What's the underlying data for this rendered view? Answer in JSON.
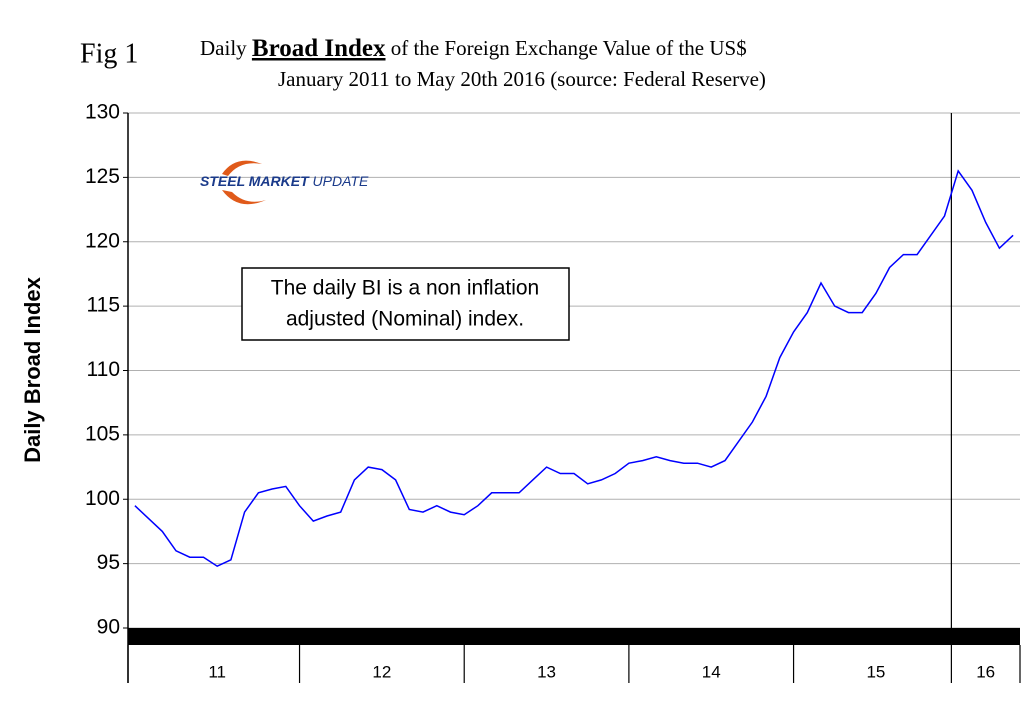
{
  "chart_data": {
    "type": "line",
    "figure_label": "Fig 1",
    "title": [
      "Daily ",
      "Broad Index",
      " of the Foreign Exchange Value of the US$"
    ],
    "subtitle": "January 2011 to May 20th 2016 (source: Federal Reserve)",
    "y_label": "Daily Broad Index",
    "logo": [
      "STEEL ",
      "MARKET",
      " UPDATE"
    ],
    "annotation": [
      "The daily BI is a non inflation",
      "adjusted (Nominal) index."
    ],
    "categories": [
      null,
      null,
      null,
      null,
      null,
      null,
      "11",
      null,
      null,
      null,
      null,
      null,
      null,
      null,
      null,
      null,
      null,
      null,
      "12",
      null,
      null,
      null,
      null,
      null,
      null,
      null,
      null,
      null,
      null,
      null,
      "13",
      null,
      null,
      null,
      null,
      null,
      null,
      null,
      null,
      null,
      null,
      null,
      "14",
      null,
      null,
      null,
      null,
      null,
      null,
      null,
      null,
      null,
      null,
      null,
      "15",
      null,
      null,
      null,
      null,
      null,
      null,
      null,
      "16",
      null,
      null
    ],
    "series": [
      {
        "color": "#0000ff",
        "values": [
          99.5,
          98.5,
          97.5,
          96,
          95.5,
          95.5,
          94.8,
          95.3,
          99,
          100.5,
          100.8,
          101,
          99.5,
          98.3,
          98.7,
          99,
          101.5,
          102.5,
          102.3,
          101.5,
          99.2,
          99,
          99.5,
          99,
          98.8,
          99.5,
          100.5,
          100.5,
          100.5,
          101.5,
          102.5,
          102,
          102,
          101.2,
          101.5,
          102,
          102.8,
          103,
          103.3,
          103,
          102.8,
          102.8,
          102.5,
          103,
          104.5,
          106,
          108,
          111,
          113,
          114.5,
          116.8,
          115,
          114.5,
          114.5,
          116,
          118,
          119,
          119,
          120.5,
          122,
          125.5,
          124,
          121.5,
          119.5,
          120.5
        ]
      }
    ],
    "ylim": [
      90,
      130
    ],
    "yticks": [
      90,
      95,
      100,
      105,
      110,
      115,
      120,
      125,
      130
    ],
    "grid": true
  }
}
